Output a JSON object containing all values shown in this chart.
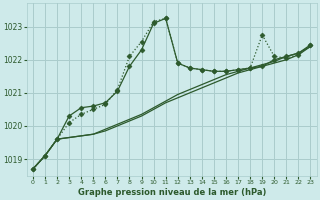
{
  "background_color": "#ceeaea",
  "grid_color": "#aacccc",
  "line_color": "#2d5a2d",
  "title": "Graphe pression niveau de la mer (hPa)",
  "xlim": [
    -0.5,
    23.5
  ],
  "ylim": [
    1018.5,
    1023.7
  ],
  "yticks": [
    1019,
    1020,
    1021,
    1022,
    1023
  ],
  "xticks": [
    0,
    1,
    2,
    3,
    4,
    5,
    6,
    7,
    8,
    9,
    10,
    11,
    12,
    13,
    14,
    15,
    16,
    17,
    18,
    19,
    20,
    21,
    22,
    23
  ],
  "lines": [
    {
      "x": [
        0,
        1,
        2,
        3,
        4,
        5,
        6,
        7,
        8,
        9,
        10,
        11,
        12,
        13,
        14,
        15,
        16,
        17,
        18,
        19,
        20,
        21,
        22,
        23
      ],
      "y": [
        1018.7,
        1019.1,
        1019.6,
        1020.3,
        1020.55,
        1020.6,
        1020.7,
        1021.05,
        1021.8,
        1022.3,
        1023.1,
        1023.25,
        1021.9,
        1021.75,
        1021.7,
        1021.65,
        1021.65,
        1021.7,
        1021.75,
        1021.8,
        1022.0,
        1022.1,
        1022.2,
        1022.45
      ],
      "style": "solid",
      "marker": "D",
      "markersize": 2.5
    },
    {
      "x": [
        0,
        1,
        2,
        3,
        4,
        5,
        6,
        7,
        8,
        9,
        10,
        11,
        12,
        13,
        14,
        15,
        16,
        17,
        18,
        19,
        20,
        21,
        22,
        23
      ],
      "y": [
        1018.7,
        1019.1,
        1019.6,
        1020.1,
        1020.35,
        1020.5,
        1020.65,
        1021.1,
        1022.1,
        1022.55,
        1023.15,
        1023.25,
        1021.9,
        1021.75,
        1021.7,
        1021.65,
        1021.65,
        1021.7,
        1021.75,
        1022.75,
        1022.1,
        1022.05,
        1022.15,
        1022.45
      ],
      "style": "dotted",
      "marker": "D",
      "markersize": 2.5
    },
    {
      "x": [
        0,
        1,
        2,
        3,
        4,
        5,
        6,
        7,
        8,
        9,
        10,
        11,
        12,
        13,
        14,
        15,
        16,
        17,
        18,
        19,
        20,
        21,
        22,
        23
      ],
      "y": [
        1018.7,
        1019.1,
        1019.6,
        1019.65,
        1019.7,
        1019.75,
        1019.85,
        1020.0,
        1020.15,
        1020.3,
        1020.5,
        1020.7,
        1020.85,
        1021.0,
        1021.15,
        1021.3,
        1021.45,
        1021.6,
        1021.7,
        1021.8,
        1021.9,
        1022.0,
        1022.15,
        1022.4
      ],
      "style": "solid",
      "marker": null,
      "markersize": 0
    },
    {
      "x": [
        0,
        1,
        2,
        3,
        4,
        5,
        6,
        7,
        8,
        9,
        10,
        11,
        12,
        13,
        14,
        15,
        16,
        17,
        18,
        19,
        20,
        21,
        22,
        23
      ],
      "y": [
        1018.7,
        1019.1,
        1019.6,
        1019.65,
        1019.7,
        1019.75,
        1019.9,
        1020.05,
        1020.2,
        1020.35,
        1020.55,
        1020.75,
        1020.95,
        1021.1,
        1021.25,
        1021.4,
        1021.55,
        1021.65,
        1021.75,
        1021.85,
        1021.95,
        1022.1,
        1022.2,
        1022.4
      ],
      "style": "solid",
      "marker": null,
      "markersize": 0
    }
  ]
}
